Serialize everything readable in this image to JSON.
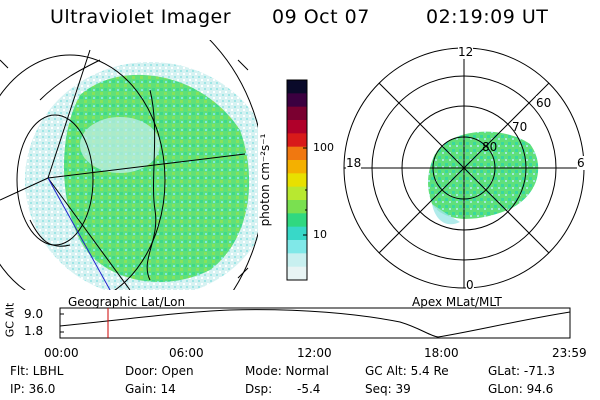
{
  "header": {
    "title": "Ultraviolet Imager",
    "date": "09 Oct 07",
    "time": "02:19:09 UT"
  },
  "left_panel": {
    "label": "Geographic Lat/Lon"
  },
  "right_panel": {
    "label": "Apex MLat/MLT",
    "mlt_labels": [
      "12",
      "18",
      "6",
      "0"
    ],
    "mlat_labels": [
      "60",
      "70",
      "80"
    ]
  },
  "colorbar": {
    "unit_label": "photon cm⁻²s⁻¹",
    "scale": "log",
    "tick_labels": [
      "100",
      "10"
    ],
    "colors": [
      "#0a0a2a",
      "#3b0040",
      "#7a0030",
      "#b0002a",
      "#d81a1a",
      "#f07810",
      "#f4b000",
      "#e8e000",
      "#b8e830",
      "#7ae050",
      "#30d880",
      "#38d8c8",
      "#80e8e8",
      "#c8f0f0",
      "#e8f4f4"
    ]
  },
  "altitude_plot": {
    "y_label": "GC Alt",
    "y_ticks": [
      "9.0",
      "1.8"
    ],
    "x_ticks": [
      "00:00",
      "06:00",
      "12:00",
      "18:00",
      "23:59"
    ],
    "current_time_marker_color": "#cc0000"
  },
  "info": {
    "flt": "Flt: LBHL",
    "ip": "IP: 36.0",
    "door": "Door: Open",
    "gain": "Gain: 14",
    "mode": "Mode: Normal",
    "dsp": "Dsp:",
    "dsp_value": "-5.4",
    "gc_alt": "GC Alt: 5.4 Re",
    "seq": "Seq: 39",
    "glat": "GLat: -71.3",
    "glon": "GLon:  94.6"
  }
}
